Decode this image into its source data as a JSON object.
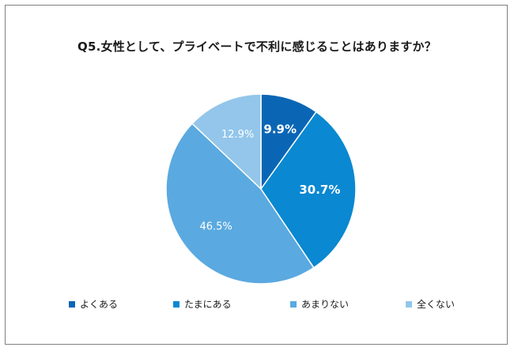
{
  "chart_data": {
    "type": "pie",
    "title": "Q5.女性として、プライベートで不利に感じることはありますか？",
    "categories": [
      "よくある",
      "たまにある",
      "あまりない",
      "全くない"
    ],
    "values": [
      9.9,
      30.7,
      46.5,
      12.9
    ],
    "labels": [
      "9.9%",
      "30.7%",
      "46.5%",
      "12.9%"
    ],
    "colors": [
      "#0a66b5",
      "#0a88d1",
      "#5aa9e0",
      "#93c6ea"
    ],
    "legend_position": "bottom"
  }
}
